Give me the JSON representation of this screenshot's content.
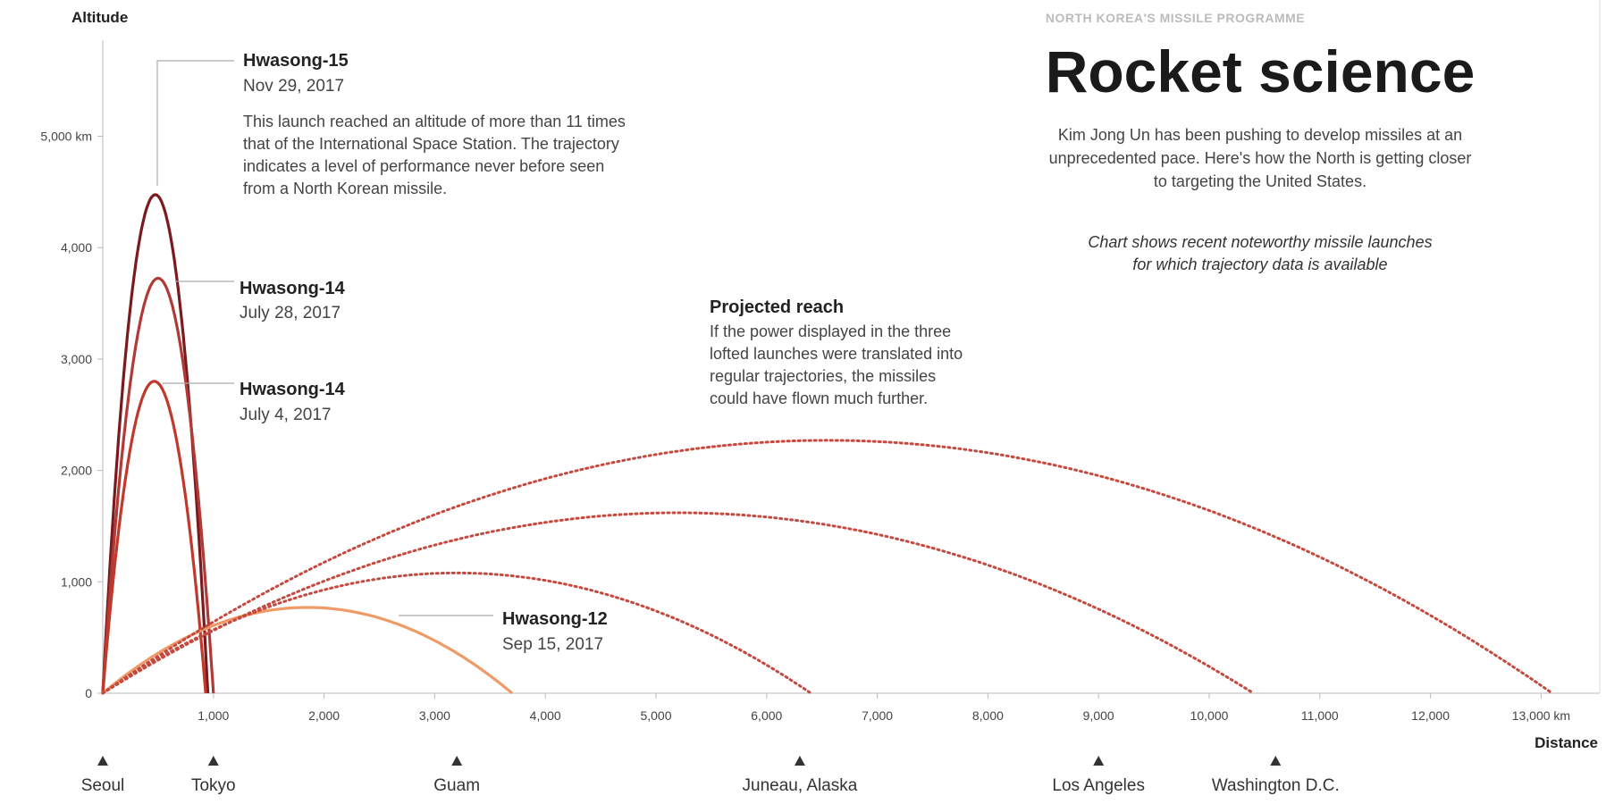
{
  "header": {
    "kicker": "NORTH KOREA'S MISSILE PROGRAMME",
    "headline": "Rocket science",
    "dek_lines": [
      "Kim Jong Un has been pushing to develop missiles at an",
      "unprecedented pace. Here's how the North is getting closer",
      "to targeting the United States."
    ],
    "note_lines": [
      "Chart shows recent noteworthy missile launches",
      "for which trajectory data is available"
    ]
  },
  "annotations": {
    "hwasong15": {
      "title": "Hwasong-15",
      "date": "Nov 29, 2017",
      "body": [
        "This launch reached an altitude of more than 11 times",
        "that of the International Space Station. The trajectory",
        "indicates a level of performance never before seen",
        "from a North Korean missile."
      ]
    },
    "hwasong14_jul28": {
      "title": "Hwasong-14",
      "date": "July 28, 2017"
    },
    "hwasong14_jul4": {
      "title": "Hwasong-14",
      "date": "July 4, 2017"
    },
    "hwasong12": {
      "title": "Hwasong-12",
      "date": "Sep 15, 2017"
    },
    "projected": {
      "title": "Projected reach",
      "body": [
        "If the power displayed in the three",
        "lofted launches were translated into",
        "regular trajectories, the missiles",
        "could have flown much further."
      ]
    }
  },
  "colors": {
    "hwasong15": "#7a1a1f",
    "hwasong14_jul28": "#b03a35",
    "hwasong14_jul4": "#c0392b",
    "hwasong12": "#ef9b67",
    "projected": "#c44a3f",
    "axis": "#bbbbbb",
    "leader": "#aaaaaa"
  },
  "chart_data": {
    "type": "line",
    "xlabel": "Distance",
    "ylabel": "Altitude",
    "x_unit": "km",
    "y_unit": "km",
    "xlim": [
      0,
      13500
    ],
    "ylim": [
      0,
      5700
    ],
    "x_ticks": [
      1000,
      2000,
      3000,
      4000,
      5000,
      6000,
      7000,
      8000,
      9000,
      10000,
      11000,
      12000,
      13000
    ],
    "x_tick_labels": [
      "1,000",
      "2,000",
      "3,000",
      "4,000",
      "5,000",
      "6,000",
      "7,000",
      "8,000",
      "9,000",
      "10,000",
      "11,000",
      "12,000",
      "13,000 km"
    ],
    "y_ticks": [
      0,
      1000,
      2000,
      3000,
      4000,
      5000
    ],
    "y_tick_labels": [
      "0",
      "1,000",
      "2,000",
      "3,000",
      "4,000",
      "5,000 km"
    ],
    "grid": false,
    "series": [
      {
        "name": "Hwasong-15",
        "date": "Nov 29, 2017",
        "style": "solid",
        "range": 950,
        "apogee": 4475
      },
      {
        "name": "Hwasong-14",
        "date": "July 28, 2017",
        "style": "solid",
        "range": 1000,
        "apogee": 3725
      },
      {
        "name": "Hwasong-14",
        "date": "July 4, 2017",
        "style": "solid",
        "range": 930,
        "apogee": 2800
      },
      {
        "name": "Hwasong-12",
        "date": "Sep 15, 2017",
        "style": "solid",
        "range": 3700,
        "apogee": 770
      },
      {
        "name": "Projected reach",
        "style": "dotted",
        "range": 13100,
        "apogee": 2270
      },
      {
        "name": "Projected reach",
        "style": "dotted",
        "range": 10400,
        "apogee": 1620
      },
      {
        "name": "Projected reach",
        "style": "dotted",
        "range": 6400,
        "apogee": 1080
      }
    ],
    "locations": [
      {
        "name": "Seoul",
        "distance": 0
      },
      {
        "name": "Tokyo",
        "distance": 1000
      },
      {
        "name": "Guam",
        "distance": 3200
      },
      {
        "name": "Juneau, Alaska",
        "distance": 6300
      },
      {
        "name": "Los Angeles",
        "distance": 9000
      },
      {
        "name": "Washington D.C.",
        "distance": 10600
      }
    ]
  }
}
